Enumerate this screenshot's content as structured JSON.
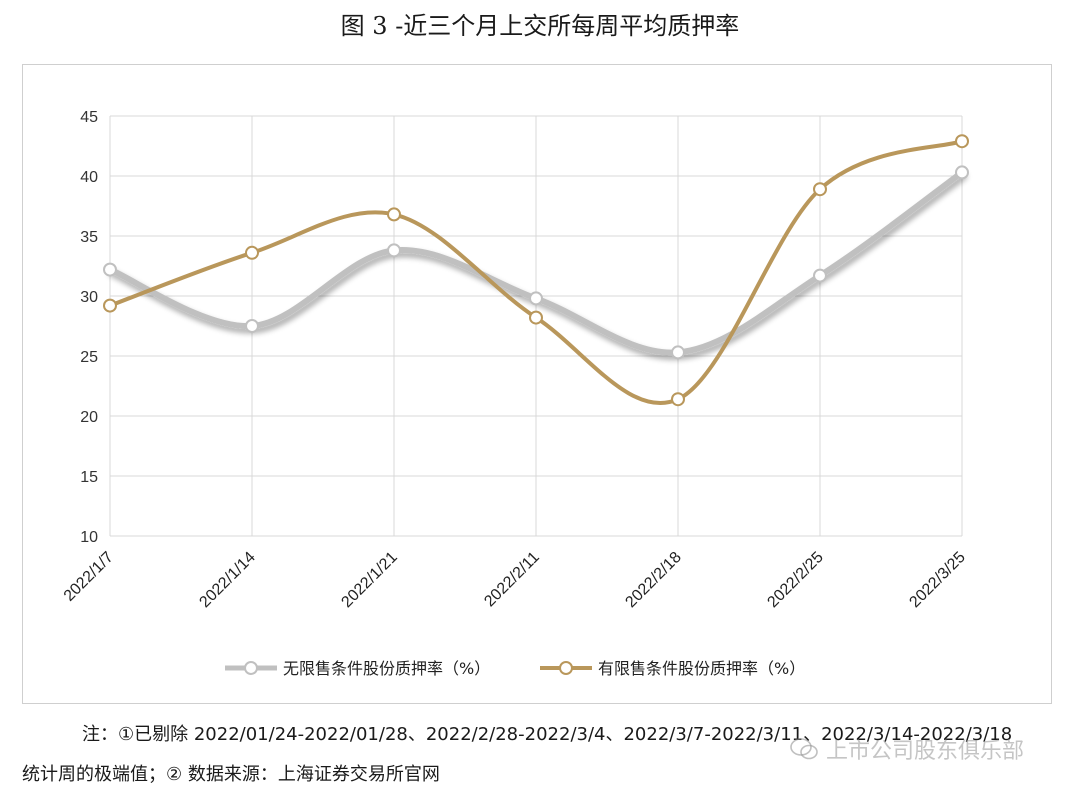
{
  "header": {
    "title": "图 3 -近三个月上交所每周平均质押率"
  },
  "chart_data": {
    "type": "line",
    "categories": [
      "2022/1/7",
      "2022/1/14",
      "2022/1/21",
      "2022/2/11",
      "2022/2/18",
      "2022/2/25",
      "2022/3/25"
    ],
    "series": [
      {
        "name": "无限售条件股份质押率（%）",
        "color": "#c0c0c0",
        "values": [
          32.2,
          27.5,
          33.8,
          29.8,
          25.3,
          31.7,
          40.3
        ]
      },
      {
        "name": "有限售条件股份质押率（%）",
        "color": "#b9975b",
        "values": [
          29.2,
          33.6,
          36.8,
          28.2,
          21.4,
          38.9,
          42.9
        ]
      }
    ],
    "yticks": [
      "10",
      "15",
      "20",
      "25",
      "30",
      "35",
      "40",
      "45"
    ],
    "ylim": [
      10,
      45
    ],
    "grid": true,
    "legend": "bottom"
  },
  "footer": {
    "note_line1": "注：①已剔除 2022/01/24-2022/01/28、2022/2/28-2022/3/4、2022/3/7-2022/3/11、2022/3/14-2022/3/18",
    "note_line2": "统计周的极端值；② 数据来源：上海证券交易所官网"
  },
  "watermark": {
    "text": "上市公司股东俱乐部",
    "icon": "wechat-icon"
  }
}
